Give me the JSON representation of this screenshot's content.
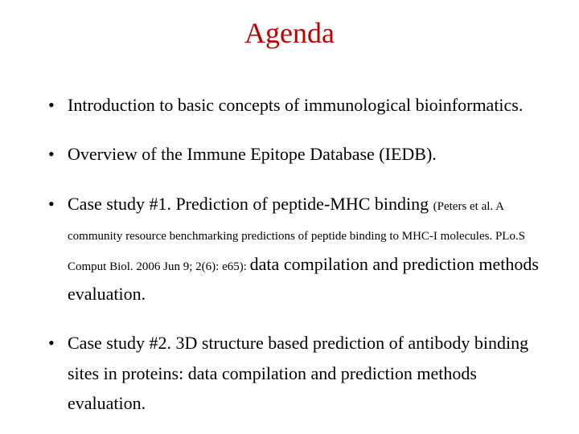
{
  "title": "Agenda",
  "title_color": "#c00000",
  "title_fontsize": 36,
  "body_color": "#000000",
  "body_fontsize": 22,
  "small_fontsize": 15,
  "background_color": "#ffffff",
  "bullets": [
    {
      "runs": [
        {
          "text": "Introduction to basic concepts of immunological bioinformatics.",
          "size": "normal"
        }
      ]
    },
    {
      "runs": [
        {
          "text": "Overview of the Immune Epitope Database (IEDB).",
          "size": "normal"
        }
      ]
    },
    {
      "runs": [
        {
          "text": "Case study #1. Prediction of peptide-MHC binding ",
          "size": "normal"
        },
        {
          "text": "(Peters et al. A community resource benchmarking predictions of peptide binding to MHC-I molecules. PLo.S Comput Biol. 2006 Jun 9; 2(6): e65): ",
          "size": "small"
        },
        {
          "text": "data compilation and prediction methods evaluation.",
          "size": "normal"
        }
      ]
    },
    {
      "runs": [
        {
          "text": "Case study #2. 3D structure based prediction of antibody binding sites in proteins: data compilation and prediction methods evaluation.",
          "size": "normal"
        }
      ]
    }
  ]
}
